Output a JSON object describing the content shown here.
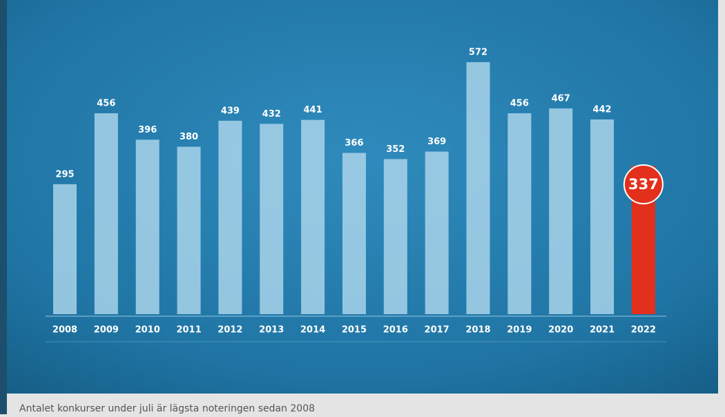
{
  "chart_data": {
    "type": "bar",
    "categories": [
      "2008",
      "2009",
      "2010",
      "2011",
      "2012",
      "2013",
      "2014",
      "2015",
      "2016",
      "2017",
      "2018",
      "2019",
      "2020",
      "2021",
      "2022"
    ],
    "values": [
      295,
      456,
      396,
      380,
      439,
      432,
      441,
      366,
      352,
      369,
      572,
      456,
      467,
      442,
      337
    ],
    "colors": [
      "#a9d3ea",
      "#a9d3ea",
      "#a9d3ea",
      "#a9d3ea",
      "#a9d3ea",
      "#a9d3ea",
      "#a9d3ea",
      "#a9d3ea",
      "#a9d3ea",
      "#a9d3ea",
      "#a9d3ea",
      "#a9d3ea",
      "#a9d3ea",
      "#a9d3ea",
      "#e2301c"
    ],
    "caption": "Antalet konkurser under juli är lägsta noteringen sedan 2008"
  }
}
